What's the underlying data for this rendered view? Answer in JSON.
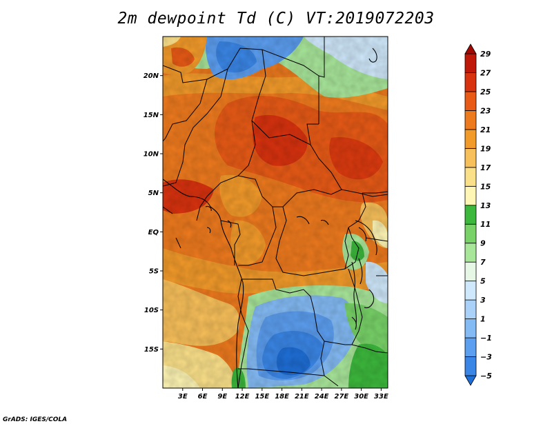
{
  "title": "2m dewpoint Td (C) VT:2019072203",
  "credit": "GrADS: IGES/COLA",
  "map": {
    "lon_range": [
      0,
      34
    ],
    "lat_range": [
      -20,
      25
    ],
    "lat_ticks": [
      {
        "value": 20,
        "label": "20N"
      },
      {
        "value": 15,
        "label": "15N"
      },
      {
        "value": 10,
        "label": "10N"
      },
      {
        "value": 5,
        "label": "5N"
      },
      {
        "value": 0,
        "label": "EQ"
      },
      {
        "value": -5,
        "label": "5S"
      },
      {
        "value": -10,
        "label": "10S"
      },
      {
        "value": -15,
        "label": "15S"
      }
    ],
    "lon_ticks": [
      {
        "value": 3,
        "label": "3E"
      },
      {
        "value": 6,
        "label": "6E"
      },
      {
        "value": 9,
        "label": "9E"
      },
      {
        "value": 12,
        "label": "12E"
      },
      {
        "value": 15,
        "label": "15E"
      },
      {
        "value": 18,
        "label": "18E"
      },
      {
        "value": 21,
        "label": "21E"
      },
      {
        "value": 24,
        "label": "24E"
      },
      {
        "value": 27,
        "label": "27E"
      },
      {
        "value": 30,
        "label": "30E"
      },
      {
        "value": 33,
        "label": "33E"
      }
    ]
  },
  "colorbar": {
    "levels": [
      "−5",
      "−3",
      "−1",
      "1",
      "3",
      "5",
      "7",
      "9",
      "11",
      "13",
      "15",
      "17",
      "19",
      "21",
      "23",
      "25",
      "27",
      "29"
    ],
    "colors": [
      "#1e6ed6",
      "#3a86e6",
      "#5c9ef0",
      "#84bbf5",
      "#aad2f8",
      "#cfe8fb",
      "#e6f7e6",
      "#a8e69a",
      "#78d268",
      "#3cb83c",
      "#fff5b4",
      "#fbe08a",
      "#f8c05a",
      "#f29a2a",
      "#ee7a1e",
      "#e85a16",
      "#d8320e",
      "#c01808",
      "#a00a04"
    ]
  }
}
